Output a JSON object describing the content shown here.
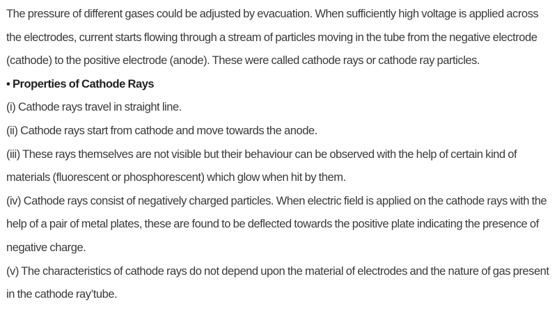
{
  "intro": "The pressure of different gases could be adjusted by evacuation. When sufficiently high voltage is applied across the electrodes, current starts flowing through a stream of particles moving in the tube from the negative electrode (cathode) to the positive electrode (anode). These were called cathode rays or cathode ray particles.",
  "heading": "• Properties of Cathode Rays",
  "properties": [
    "(i) Cathode rays travel in straight line.",
    "(ii) Cathode rays start from cathode and move towards the anode.",
    "(iii) These rays themselves are not visible but their behaviour can be observed with the help of certain kind of materials (fluorescent or phosphorescent) which glow when hit by them.",
    "(iv) Cathode rays consist of negatively charged particles. When electric field is applied on the cathode rays with the help of a pair of metal plates, these are found to be deflected towards the positive plate indicating the presence of negative charge.",
    "(v) The characteristics of cathode rays do not depend upon the material of electrodes and the nature of gas present in the cathode ray’tube."
  ]
}
